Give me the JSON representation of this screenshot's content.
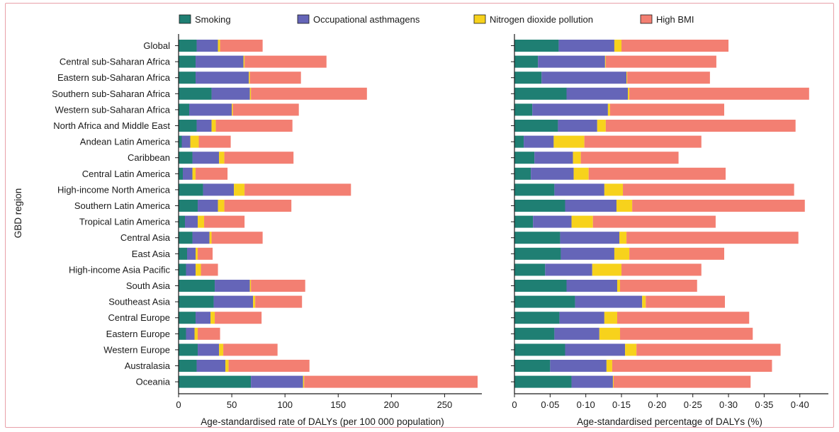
{
  "figure": {
    "ylabel": "GBD region",
    "left_xlabel": "Age-standardised rate of DALYs (per 100 000 population)",
    "right_xlabel": "Age-standardised percentage of DALYs (%)"
  },
  "legend": [
    {
      "name": "Smoking",
      "color": "#1f7f73"
    },
    {
      "name": "Occupational asthmagens",
      "color": "#6565b8"
    },
    {
      "name": "Nitrogen dioxide pollution",
      "color": "#f7d21c"
    },
    {
      "name": "High BMI",
      "color": "#f37f72"
    }
  ],
  "chart_data": [
    {
      "type": "bar",
      "orientation": "horizontal",
      "stacked": true,
      "xlabel": "Age-standardised rate of DALYs (per 100 000 population)",
      "ylabel": "GBD region",
      "xlim": [
        0,
        285
      ],
      "xticks": [
        0,
        50,
        100,
        150,
        200,
        250
      ],
      "xtick_labels": [
        "0",
        "50",
        "100",
        "150",
        "200",
        "250"
      ],
      "categories": [
        "Global",
        "Central sub-Saharan Africa",
        "Eastern sub-Saharan Africa",
        "Southern sub-Saharan Africa",
        "Western sub-Saharan Africa",
        "North Africa and Middle East",
        "Andean Latin America",
        "Caribbean",
        "Central Latin America",
        "High-income North America",
        "Southern Latin America",
        "Tropical Latin America",
        "Central Asia",
        "East Asia",
        "High-income Asia Pacific",
        "South Asia",
        "Southeast Asia",
        "Central Europe",
        "Eastern Europe",
        "Western Europe",
        "Australasia",
        "Oceania"
      ],
      "series": [
        {
          "name": "Smoking",
          "values": [
            17,
            16,
            16,
            31,
            10,
            17,
            3,
            13,
            4,
            23,
            18,
            6,
            13,
            8,
            7,
            34,
            33,
            16,
            7,
            18,
            17,
            68
          ]
        },
        {
          "name": "Occupational asthmagens",
          "values": [
            20,
            45,
            50,
            36,
            40,
            14,
            8,
            25,
            9,
            29,
            19,
            12,
            16,
            8,
            9,
            33,
            37,
            14,
            8,
            20,
            27,
            49
          ]
        },
        {
          "name": "Nitrogen dioxide pollution",
          "values": [
            2,
            1,
            1,
            1,
            1,
            4,
            8,
            5,
            3,
            10,
            6,
            6,
            2,
            2,
            5,
            1,
            2,
            4,
            3,
            4,
            3,
            1
          ]
        },
        {
          "name": "High BMI",
          "values": [
            40,
            77,
            48,
            109,
            62,
            72,
            30,
            65,
            30,
            100,
            63,
            38,
            48,
            14,
            16,
            51,
            44,
            44,
            21,
            51,
            76,
            163
          ]
        }
      ]
    },
    {
      "type": "bar",
      "orientation": "horizontal",
      "stacked": true,
      "xlabel": "Age-standardised percentage of DALYs (%)",
      "xlim": [
        0,
        0.44
      ],
      "xticks": [
        0,
        0.05,
        0.1,
        0.15,
        0.2,
        0.25,
        0.3,
        0.35,
        0.4
      ],
      "xtick_labels": [
        "0",
        "0·05",
        "0·10",
        "0·15",
        "0·20",
        "0·25",
        "0·30",
        "0·35",
        "0·40"
      ],
      "categories": [
        "Global",
        "Central sub-Saharan Africa",
        "Eastern sub-Saharan Africa",
        "Southern sub-Saharan Africa",
        "Western sub-Saharan Africa",
        "North Africa and Middle East",
        "Andean Latin America",
        "Caribbean",
        "Central Latin America",
        "High-income North America",
        "Southern Latin America",
        "Tropical Latin America",
        "Central Asia",
        "East Asia",
        "High-income Asia Pacific",
        "South Asia",
        "Southeast Asia",
        "Central Europe",
        "Eastern Europe",
        "Western Europe",
        "Australasia",
        "Oceania"
      ],
      "series": [
        {
          "name": "Smoking",
          "values": [
            0.062,
            0.033,
            0.038,
            0.073,
            0.025,
            0.061,
            0.013,
            0.028,
            0.023,
            0.056,
            0.071,
            0.026,
            0.064,
            0.065,
            0.043,
            0.073,
            0.085,
            0.063,
            0.056,
            0.071,
            0.05,
            0.08
          ]
        },
        {
          "name": "Occupational asthmagens",
          "values": [
            0.078,
            0.094,
            0.119,
            0.086,
            0.106,
            0.055,
            0.042,
            0.054,
            0.06,
            0.07,
            0.072,
            0.054,
            0.083,
            0.075,
            0.066,
            0.071,
            0.094,
            0.063,
            0.063,
            0.084,
            0.079,
            0.058
          ]
        },
        {
          "name": "Nitrogen dioxide pollution",
          "values": [
            0.01,
            0.001,
            0.001,
            0.002,
            0.003,
            0.012,
            0.043,
            0.011,
            0.021,
            0.026,
            0.022,
            0.03,
            0.01,
            0.021,
            0.041,
            0.004,
            0.005,
            0.018,
            0.029,
            0.016,
            0.008,
            0.001
          ]
        },
        {
          "name": "High BMI",
          "values": [
            0.15,
            0.155,
            0.116,
            0.252,
            0.16,
            0.266,
            0.164,
            0.137,
            0.192,
            0.24,
            0.242,
            0.172,
            0.241,
            0.133,
            0.112,
            0.108,
            0.111,
            0.185,
            0.186,
            0.202,
            0.224,
            0.192
          ]
        }
      ]
    }
  ]
}
